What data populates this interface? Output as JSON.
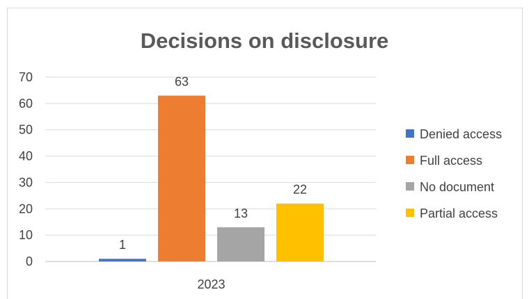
{
  "chart_data": {
    "type": "bar",
    "title": "Decisions on disclosure",
    "xlabel": "",
    "ylabel": "",
    "categories": [
      "2023"
    ],
    "ylim": [
      0,
      70
    ],
    "yticks": [
      0,
      10,
      20,
      30,
      40,
      50,
      60,
      70
    ],
    "grid": true,
    "legend_position": "right",
    "series": [
      {
        "name": "Denied access",
        "values": [
          1
        ],
        "color": "#4472c4"
      },
      {
        "name": "Full access",
        "values": [
          63
        ],
        "color": "#ed7d31"
      },
      {
        "name": "No document",
        "values": [
          13
        ],
        "color": "#a5a5a5"
      },
      {
        "name": "Partial access",
        "values": [
          22
        ],
        "color": "#ffc000"
      }
    ]
  }
}
